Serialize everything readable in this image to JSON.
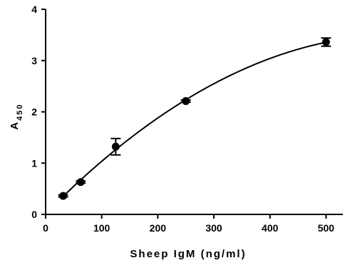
{
  "chart_data": {
    "type": "scatter",
    "title": "",
    "xlabel": "Sheep IgM (ng/ml)",
    "ylabel_main": "A",
    "ylabel_sub": "450",
    "xlim": [
      0,
      530
    ],
    "ylim": [
      0,
      4
    ],
    "x_ticks": [
      0,
      100,
      200,
      300,
      400,
      500
    ],
    "y_ticks": [
      0,
      1,
      2,
      3,
      4
    ],
    "grid": false,
    "legend": "none",
    "series": [
      {
        "x": [
          31.25,
          62.5,
          125,
          250,
          500
        ],
        "y": [
          0.36,
          0.63,
          1.32,
          2.21,
          3.36
        ],
        "error": [
          0.02,
          0.02,
          0.16,
          0.02,
          0.08
        ],
        "fit": "curve"
      }
    ]
  }
}
